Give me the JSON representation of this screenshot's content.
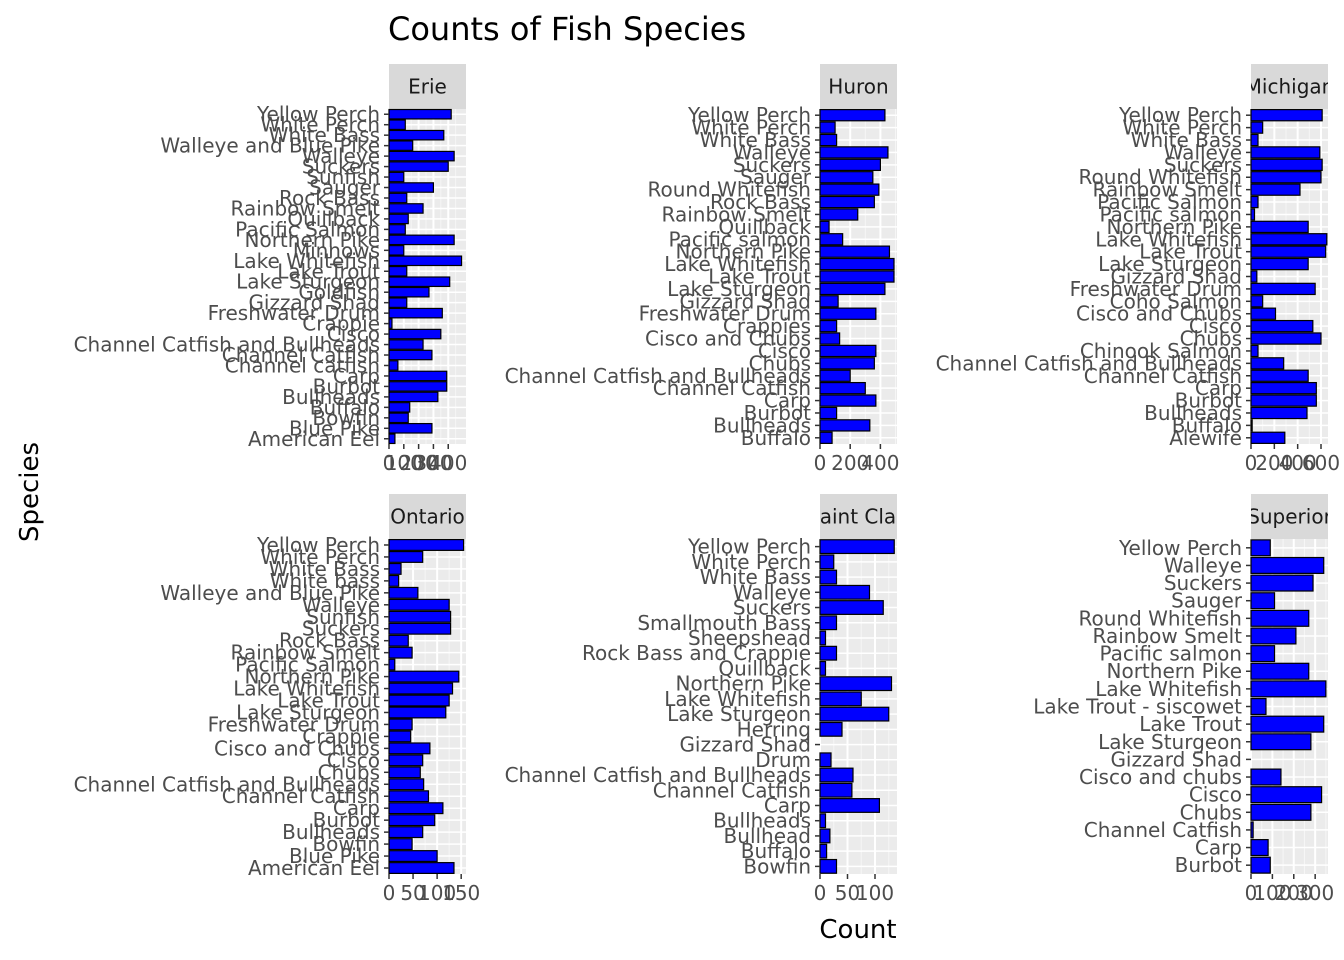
{
  "chart_data": {
    "type": "bar",
    "orientation": "horizontal",
    "facet_layout": "3 columns x 2 rows, free scales",
    "title": "Counts of Fish Species",
    "xlabel": "Count",
    "ylabel": "Species",
    "bar_fill": "#0000ff",
    "bar_stroke": "#000000",
    "panel_background": "#ebebeb",
    "strip_background": "#d9d9d9",
    "grid": true,
    "legend": "none",
    "panels": [
      {
        "strip": "Erie",
        "xlim": [
          0,
          520
        ],
        "x_ticks": [
          0,
          100,
          200,
          300,
          400
        ],
        "x_tick_labels": [
          "0",
          "100",
          "200",
          "300",
          "400"
        ],
        "categories": [
          "Yellow Perch",
          "White Perch",
          "White Bass",
          "Walleye and Blue Pike",
          "Walleye",
          "Suckers",
          "Sunfish",
          "Sauger",
          "Rock Bass",
          "Rainbow Smelt",
          "Quillback",
          "Pacific Salmon",
          "Northern Pike",
          "Minnows",
          "Lake Whitefish",
          "Lake Trout",
          "Lake Sturgeon",
          "Goldfish",
          "Gizzard Shad",
          "Freshwater Drum",
          "Crappie",
          "Cisco",
          "Channel Catfish and Bullheads",
          "Channel Catfish",
          "Channel catfish",
          "Carp",
          "Burbot",
          "Bullheads",
          "Buffalo",
          "Bowfin",
          "Blue Pike",
          "American Eel"
        ],
        "values": [
          420,
          110,
          370,
          160,
          440,
          400,
          100,
          300,
          120,
          230,
          130,
          110,
          440,
          100,
          490,
          120,
          410,
          270,
          120,
          360,
          20,
          350,
          230,
          290,
          60,
          390,
          390,
          330,
          140,
          130,
          290,
          40
        ]
      },
      {
        "strip": "Huron",
        "xlim": [
          0,
          510
        ],
        "x_ticks": [
          0,
          200,
          400
        ],
        "x_tick_labels": [
          "0",
          "200",
          "400"
        ],
        "categories": [
          "Yellow Perch",
          "White Perch",
          "White Bass",
          "Walleye",
          "Suckers",
          "Sauger",
          "Round Whitefish",
          "Rock Bass",
          "Rainbow Smelt",
          "Quillback",
          "Pacific salmon",
          "Northern Pike",
          "Lake Whitefish",
          "Lake Trout",
          "Lake Sturgeon",
          "Gizzard Shad",
          "Freshwater Drum",
          "Crappies",
          "Cisco and Chubs",
          "Cisco",
          "Chubs",
          "Channel Catfish and Bullheads",
          "Channel Catfish",
          "Carp",
          "Burbot",
          "Bullheads",
          "Buffalo"
        ],
        "values": [
          430,
          100,
          110,
          450,
          400,
          350,
          390,
          360,
          250,
          60,
          150,
          460,
          490,
          490,
          430,
          120,
          370,
          110,
          130,
          370,
          360,
          200,
          300,
          370,
          110,
          330,
          80
        ]
      },
      {
        "strip": "Michigan",
        "xlim": [
          0,
          660
        ],
        "x_ticks": [
          0,
          200,
          400,
          600
        ],
        "x_tick_labels": [
          "0",
          "200",
          "400",
          "600"
        ],
        "categories": [
          "Yellow Perch",
          "White Perch",
          "White Bass",
          "Walleye",
          "Suckers",
          "Round Whitefish",
          "Rainbow Smelt",
          "Pacific Salmon",
          "Pacific salmon",
          "Northern Pike",
          "Lake Whitefish",
          "Lake Trout",
          "Lake Sturgeon",
          "Gizzard Shad",
          "Freshwater Drum",
          "Coho Salmon",
          "Cisco and Chubs",
          "Cisco",
          "Chubs",
          "Chinook Salmon",
          "Channel Catfish and Bullheads",
          "Channel Catfish",
          "Carp",
          "Burbot",
          "Bullheads",
          "Buffalo",
          "Alewife"
        ],
        "values": [
          610,
          100,
          60,
          590,
          610,
          600,
          420,
          60,
          30,
          490,
          650,
          640,
          490,
          50,
          550,
          100,
          210,
          530,
          600,
          60,
          280,
          490,
          560,
          560,
          480,
          10,
          290
        ]
      },
      {
        "strip": "Ontario",
        "xlim": [
          0,
          160
        ],
        "x_ticks": [
          0,
          50,
          100,
          150
        ],
        "x_tick_labels": [
          "0",
          "50",
          "100",
          "150"
        ],
        "categories": [
          "Yellow Perch",
          "White Perch",
          "White Bass",
          "White bass",
          "Walleye and Blue Pike",
          "Walleye",
          "Sunfish",
          "Suckers",
          "Rock Bass",
          "Rainbow Smelt",
          "Pacific Salmon",
          "Northern Pike",
          "Lake Whitefish",
          "Lake Trout",
          "Lake Sturgeon",
          "Freshwater Drum",
          "Crappie",
          "Cisco and Chubs",
          "Cisco",
          "Chubs",
          "Channel Catfish and Bullheads",
          "Channel Catfish",
          "Carp",
          "Burbot",
          "Bullheads",
          "Bowfin",
          "Blue Pike",
          "American Eel"
        ],
        "values": [
          155,
          70,
          25,
          20,
          60,
          125,
          128,
          128,
          40,
          48,
          12,
          145,
          132,
          125,
          118,
          48,
          45,
          85,
          70,
          65,
          72,
          82,
          112,
          95,
          70,
          48,
          100,
          135
        ]
      },
      {
        "strip": "Saint Clair",
        "xlim": [
          0,
          140
        ],
        "x_ticks": [
          0,
          50,
          100
        ],
        "x_tick_labels": [
          "0",
          "50",
          "100"
        ],
        "categories": [
          "Yellow Perch",
          "White Perch",
          "White Bass",
          "Walleye",
          "Suckers",
          "Smallmouth Bass",
          "Sheepshead",
          "Rock Bass and Crappie",
          "Quillback",
          "Northern Pike",
          "Lake Whitefish",
          "Lake Sturgeon",
          "Herring",
          "Gizzard Shad",
          "Drum",
          "Channel Catfish and Bullheads",
          "Channel Catfish",
          "Carp",
          "Bullheads",
          "Bullhead",
          "Buffalo",
          "Bowfin"
        ],
        "values": [
          135,
          25,
          30,
          90,
          115,
          30,
          10,
          30,
          10,
          130,
          75,
          125,
          40,
          0,
          20,
          60,
          58,
          108,
          10,
          18,
          12,
          30
        ]
      },
      {
        "strip": "Superior",
        "xlim": [
          0,
          360
        ],
        "x_ticks": [
          0,
          100,
          200,
          300
        ],
        "x_tick_labels": [
          "0",
          "100",
          "200",
          "300"
        ],
        "categories": [
          "Yellow Perch",
          "Walleye",
          "Suckers",
          "Sauger",
          "Round Whitefish",
          "Rainbow Smelt",
          "Pacific salmon",
          "Northern Pike",
          "Lake Whitefish",
          "Lake Trout - siscowet",
          "Lake Trout",
          "Lake Sturgeon",
          "Gizzard Shad",
          "Cisco and chubs",
          "Cisco",
          "Chubs",
          "Channel Catfish",
          "Carp",
          "Burbot"
        ],
        "values": [
          90,
          340,
          290,
          110,
          270,
          210,
          110,
          270,
          350,
          70,
          340,
          280,
          0,
          140,
          330,
          280,
          10,
          80,
          90
        ]
      }
    ]
  }
}
